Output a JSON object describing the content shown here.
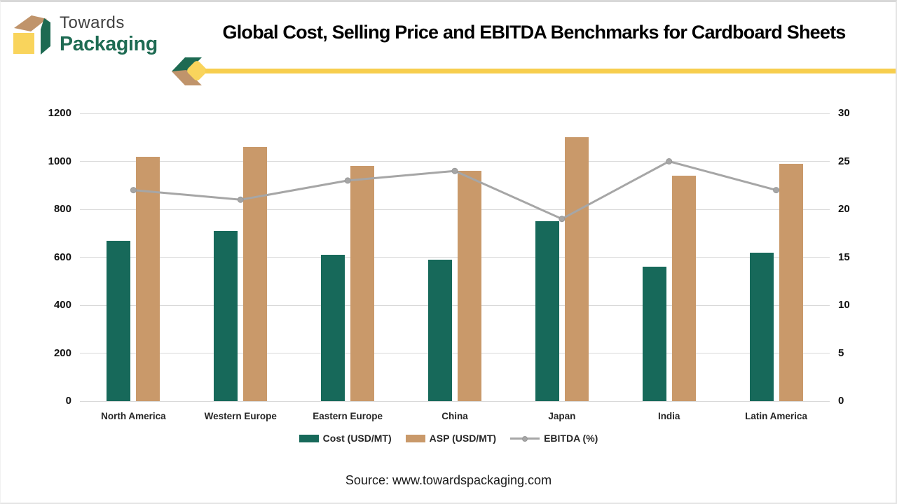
{
  "brand": {
    "line1": "Towards",
    "line2": "Packaging",
    "colors": {
      "green": "#1d6a52",
      "tan": "#c0946b",
      "yellow": "#f7ce4e"
    }
  },
  "title": "Global Cost, Selling Price and EBITDA Benchmarks for Cardboard Sheets",
  "source_line": "Source: www.towardspackaging.com",
  "chart_data": {
    "type": "bar",
    "subtype": "grouped bars with overlay line",
    "categories": [
      "North America",
      "Western Europe",
      "Eastern Europe",
      "China",
      "Japan",
      "India",
      "Latin America"
    ],
    "series": [
      {
        "name": "Cost (USD/MT)",
        "type": "bar",
        "axis": "left",
        "color": "#17695a",
        "values": [
          670,
          710,
          610,
          590,
          750,
          560,
          620
        ]
      },
      {
        "name": "ASP (USD/MT)",
        "type": "bar",
        "axis": "left",
        "color": "#c9996a",
        "values": [
          1020,
          1060,
          980,
          960,
          1100,
          940,
          990
        ]
      },
      {
        "name": "EBITDA (%)",
        "type": "line",
        "axis": "right",
        "color": "#a6a6a6",
        "values": [
          22,
          21,
          23,
          24,
          19,
          25,
          22
        ]
      }
    ],
    "left_axis": {
      "min": 0,
      "max": 1200,
      "step": 200
    },
    "right_axis": {
      "min": 0,
      "max": 30,
      "step": 5
    },
    "grid": true,
    "legend_position": "bottom"
  }
}
